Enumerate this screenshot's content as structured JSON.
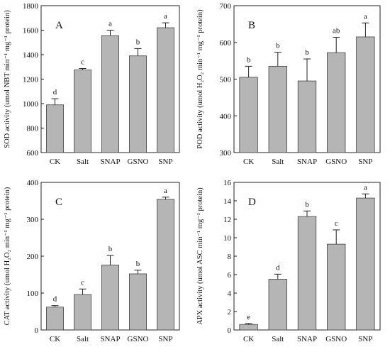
{
  "colors": {
    "bar_fill": "#b5b5b5",
    "bar_stroke": "#444444",
    "axis": "#222222"
  },
  "chart_data": [
    {
      "type": "bar",
      "panel_label": "A",
      "ylabel": "SOD activity (umol NBT min⁻¹ mg⁻¹ protein)",
      "categories": [
        "CK",
        "Salt",
        "SNAP",
        "GSNO",
        "SNP"
      ],
      "values": [
        990,
        1275,
        1555,
        1390,
        1620
      ],
      "errors": [
        50,
        12,
        45,
        60,
        40
      ],
      "letters": [
        "d",
        "c",
        "a",
        "b",
        "a"
      ],
      "ylim": [
        600,
        1800
      ],
      "yticks": [
        "600",
        "800",
        "1000",
        "1200",
        "1400",
        "1600",
        "1800"
      ]
    },
    {
      "type": "bar",
      "panel_label": "B",
      "ylabel": "POD activity (umol H₂O₂ min⁻¹ mg⁻¹ protein)",
      "categories": [
        "CK",
        "Salt",
        "SNAP",
        "GSNO",
        "SNP"
      ],
      "values": [
        505,
        535,
        495,
        572,
        615
      ],
      "errors": [
        30,
        38,
        60,
        42,
        38
      ],
      "letters": [
        "b",
        "b",
        "b",
        "ab",
        "a"
      ],
      "ylim": [
        300,
        700
      ],
      "yticks": [
        "300",
        "400",
        "500",
        "600",
        "700"
      ]
    },
    {
      "type": "bar",
      "panel_label": "C",
      "ylabel": "CAT activity (umol H₂O₂ min⁻¹ mg⁻¹ protein)",
      "categories": [
        "CK",
        "Salt",
        "SNAP",
        "GSNO",
        "SNP"
      ],
      "values": [
        62,
        96,
        176,
        152,
        354
      ],
      "errors": [
        4,
        15,
        26,
        10,
        6
      ],
      "letters": [
        "d",
        "c",
        "b",
        "b",
        "a"
      ],
      "ylim": [
        0,
        400
      ],
      "yticks": [
        "0",
        "100",
        "200",
        "300",
        "400"
      ]
    },
    {
      "type": "bar",
      "panel_label": "D",
      "ylabel": "APX activity (umol ASC min⁻¹ mg⁻¹ protein)",
      "categories": [
        "CK",
        "Salt",
        "SNAP",
        "GSNO",
        "SNP"
      ],
      "values": [
        0.6,
        5.5,
        12.3,
        9.3,
        14.3
      ],
      "errors": [
        0.1,
        0.55,
        0.6,
        1.55,
        0.45
      ],
      "letters": [
        "e",
        "d",
        "b",
        "c",
        "a"
      ],
      "ylim": [
        0,
        16
      ],
      "yticks": [
        "0",
        "2",
        "4",
        "6",
        "8",
        "10",
        "12",
        "14",
        "16"
      ]
    }
  ]
}
